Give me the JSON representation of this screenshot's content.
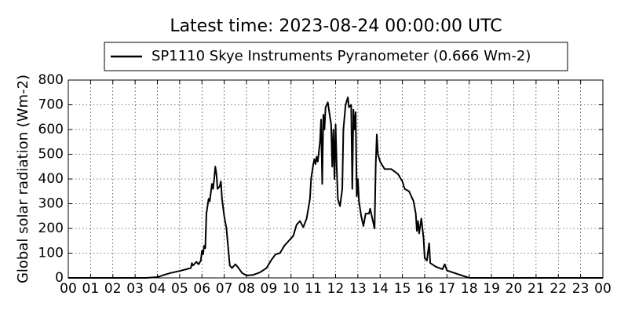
{
  "chart_data": {
    "type": "line",
    "title": "Latest time: 2023-08-24 00:00:00 UTC",
    "y_label": "Global solar radiation (Wm-2)",
    "legend": "top",
    "grid": true,
    "xlim": [
      0,
      24
    ],
    "ylim": [
      0,
      800
    ],
    "yticks": [
      0,
      100,
      200,
      300,
      400,
      500,
      600,
      700,
      800
    ],
    "xticks": [
      {
        "value": 0,
        "label": "00"
      },
      {
        "value": 1,
        "label": "01"
      },
      {
        "value": 2,
        "label": "02"
      },
      {
        "value": 3,
        "label": "03"
      },
      {
        "value": 4,
        "label": "04"
      },
      {
        "value": 5,
        "label": "05"
      },
      {
        "value": 6,
        "label": "06"
      },
      {
        "value": 7,
        "label": "07"
      },
      {
        "value": 8,
        "label": "08"
      },
      {
        "value": 9,
        "label": "09"
      },
      10,
      11,
      12,
      13,
      14,
      15,
      16,
      17,
      18,
      19,
      20,
      21,
      22,
      23,
      {
        "value": 24,
        "label": "00"
      }
    ],
    "x": [
      0,
      3.5,
      4.0,
      4.3,
      4.6,
      5.0,
      5.3,
      5.5,
      5.55,
      5.6,
      5.75,
      5.85,
      5.95,
      6.0,
      6.05,
      6.1,
      6.15,
      6.2,
      6.3,
      6.35,
      6.45,
      6.5,
      6.55,
      6.6,
      6.65,
      6.7,
      6.8,
      6.85,
      6.9,
      7.0,
      7.1,
      7.2,
      7.25,
      7.35,
      7.5,
      7.6,
      7.8,
      8.0,
      8.3,
      8.6,
      8.9,
      9.1,
      9.3,
      9.5,
      9.7,
      9.9,
      10.1,
      10.25,
      10.4,
      10.55,
      10.7,
      10.85,
      10.9,
      11.0,
      11.05,
      11.1,
      11.15,
      11.2,
      11.3,
      11.35,
      11.4,
      11.45,
      11.5,
      11.55,
      11.65,
      11.7,
      11.8,
      11.85,
      11.9,
      11.95,
      12.0,
      12.05,
      12.1,
      12.2,
      12.3,
      12.35,
      12.45,
      12.55,
      12.6,
      12.7,
      12.75,
      12.8,
      12.85,
      12.9,
      12.95,
      13.0,
      13.05,
      13.15,
      13.25,
      13.35,
      13.5,
      13.55,
      13.65,
      13.75,
      13.8,
      13.85,
      13.9,
      14.0,
      14.2,
      14.5,
      14.8,
      15.0,
      15.1,
      15.3,
      15.5,
      15.6,
      15.65,
      15.7,
      15.75,
      15.85,
      15.95,
      16.0,
      16.1,
      16.2,
      16.25,
      16.5,
      16.8,
      16.9,
      17.0,
      17.5,
      18.0,
      24
    ],
    "series": [
      {
        "name": "SP1110 Skye Instruments Pyranometer (0.666 Wm-2)",
        "color": "#000000",
        "values": [
          0,
          0,
          3,
          12,
          20,
          28,
          35,
          40,
          60,
          50,
          65,
          55,
          70,
          110,
          95,
          130,
          120,
          260,
          320,
          310,
          380,
          360,
          400,
          450,
          420,
          360,
          370,
          390,
          320,
          250,
          200,
          100,
          50,
          40,
          55,
          45,
          20,
          10,
          12,
          22,
          40,
          70,
          95,
          100,
          130,
          150,
          170,
          215,
          230,
          205,
          240,
          320,
          400,
          460,
          480,
          460,
          490,
          470,
          550,
          640,
          380,
          660,
          600,
          690,
          710,
          680,
          620,
          450,
          600,
          400,
          620,
          450,
          320,
          290,
          360,
          600,
          700,
          730,
          690,
          700,
          360,
          680,
          600,
          670,
          330,
          400,
          310,
          250,
          210,
          260,
          260,
          280,
          240,
          200,
          450,
          580,
          500,
          470,
          440,
          440,
          420,
          390,
          360,
          350,
          310,
          260,
          190,
          230,
          180,
          240,
          160,
          80,
          70,
          140,
          60,
          45,
          35,
          55,
          30,
          15,
          0,
          0
        ]
      }
    ]
  }
}
